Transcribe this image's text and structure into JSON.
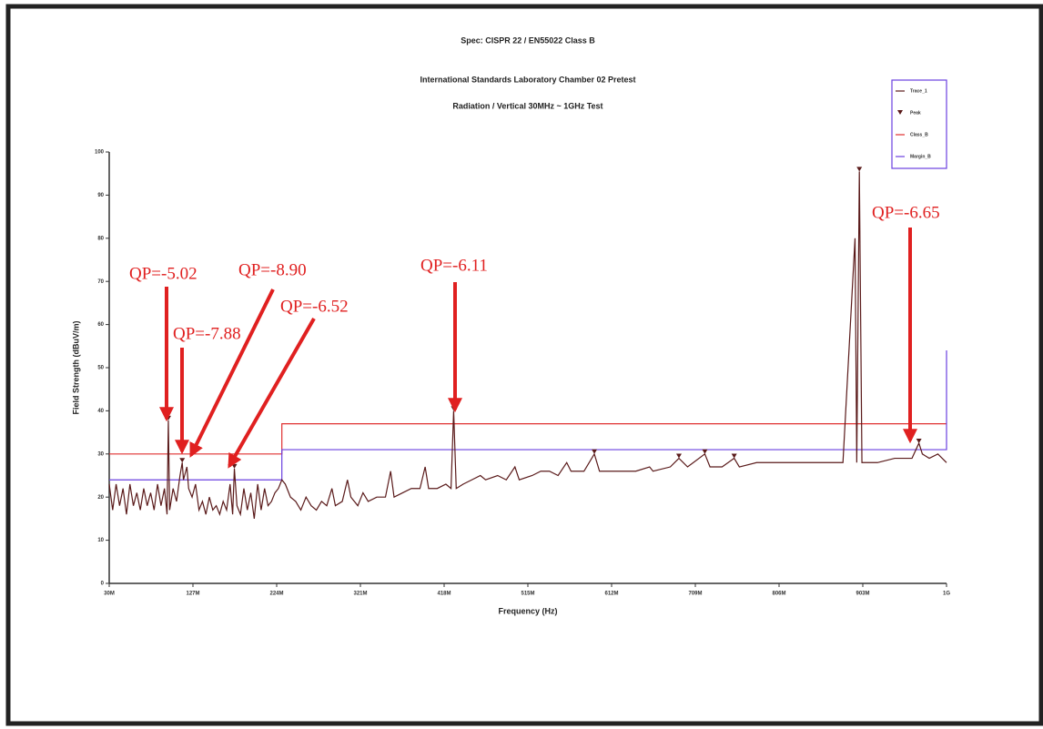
{
  "chart_data": {
    "type": "line",
    "title": "Spec: CISPR 22 / EN55022 Class B",
    "subtitle": "International Standards Laboratory Chamber 02 Pretest",
    "subtitle2": "Radiation / Vertical 30MHz ~ 1GHz Test",
    "xlabel": "Frequency (Hz)",
    "ylabel": "Field Strength (dBuV/m)",
    "xlim": [
      30,
      1000
    ],
    "ylim": [
      0,
      100
    ],
    "xticks": [
      {
        "value": 30,
        "label": "30M"
      },
      {
        "value": 127,
        "label": "127M"
      },
      {
        "value": 224,
        "label": "224M"
      },
      {
        "value": 321,
        "label": "321M"
      },
      {
        "value": 418,
        "label": "418M"
      },
      {
        "value": 515,
        "label": "515M"
      },
      {
        "value": 612,
        "label": "612M"
      },
      {
        "value": 709,
        "label": "709M"
      },
      {
        "value": 806,
        "label": "806M"
      },
      {
        "value": 903,
        "label": "903M"
      },
      {
        "value": 1000,
        "label": "1G"
      }
    ],
    "yticks": [
      0,
      10,
      20,
      30,
      40,
      50,
      60,
      70,
      80,
      90,
      100
    ],
    "legend": "upper right",
    "series": [
      {
        "name": "Trace_1",
        "color": "#5a1a1a",
        "mode": "line",
        "x": [
          30,
          34,
          38,
          42,
          46,
          50,
          54,
          58,
          62,
          66,
          70,
          74,
          78,
          82,
          86,
          90,
          94,
          97,
          98.5,
          100,
          104,
          108,
          112,
          114.6,
          116,
          120,
          122,
          126,
          130,
          134,
          138,
          142,
          146,
          150,
          154,
          158,
          162,
          166,
          170,
          173,
          175,
          178,
          182,
          186,
          190,
          194,
          198,
          202,
          206,
          210,
          214,
          218,
          222,
          226,
          230,
          234,
          240,
          246,
          252,
          258,
          264,
          270,
          276,
          282,
          288,
          292,
          300,
          306,
          310,
          318,
          324,
          330,
          340,
          350,
          356,
          360,
          370,
          380,
          390,
          396,
          400,
          410,
          420,
          426,
          429,
          432,
          440,
          450,
          460,
          466,
          480,
          490,
          500,
          505,
          520,
          530,
          540,
          550,
          560,
          565,
          580,
          592,
          598,
          620,
          640,
          656,
          660,
          680,
          690,
          700,
          720,
          726,
          740,
          754,
          760,
          780,
          800,
          820,
          840,
          860,
          870,
          880,
          894,
          896,
          899,
          902,
          920,
          940,
          950,
          960,
          968,
          972,
          980,
          990,
          1000
        ],
        "values": [
          23,
          17,
          23,
          18,
          22,
          16,
          23,
          18,
          21,
          17,
          22,
          18,
          21,
          17,
          23,
          18,
          22,
          16,
          37.8,
          17,
          22,
          19,
          25,
          28,
          24,
          27,
          22,
          20,
          23,
          17,
          19,
          16,
          20,
          17,
          18,
          16,
          19,
          17,
          23,
          16,
          26.6,
          18,
          16,
          22,
          17,
          21,
          15,
          23,
          17,
          22,
          18,
          19,
          21,
          22,
          24,
          23,
          20,
          19,
          17,
          20,
          18,
          17,
          19,
          18,
          22,
          18,
          19,
          24,
          20,
          18,
          21,
          19,
          20,
          20,
          26,
          20,
          21,
          22,
          22,
          27,
          22,
          22,
          23,
          22,
          40,
          22,
          23,
          24,
          25,
          24,
          25,
          24,
          27,
          24,
          25,
          26,
          26,
          25,
          28,
          26,
          26,
          30,
          26,
          26,
          26,
          27,
          26,
          27,
          29,
          27,
          30,
          27,
          27,
          29,
          27,
          28,
          28,
          28,
          28,
          28,
          28,
          28,
          80,
          28,
          95.5,
          28,
          28,
          29,
          29,
          29,
          32.5,
          30,
          29,
          30,
          28
        ]
      },
      {
        "name": "Peak",
        "color": "#5a1a1a",
        "mode": "markers",
        "x": [
          98.5,
          114.6,
          175,
          429,
          592,
          690,
          720,
          754,
          899,
          968
        ],
        "values": [
          37.8,
          28,
          26.6,
          40,
          30,
          29,
          30,
          29,
          95.5,
          32.5
        ]
      },
      {
        "name": "Class_B",
        "color": "#e03030",
        "mode": "line",
        "x": [
          30,
          230,
          230,
          1000
        ],
        "values": [
          30,
          30,
          37,
          37
        ]
      },
      {
        "name": "Margin_B",
        "color": "#6a40e0",
        "mode": "line",
        "x": [
          30,
          230,
          230,
          1000,
          1000
        ],
        "values": [
          24,
          24,
          31,
          31,
          54
        ]
      }
    ],
    "annotations": [
      "QP=-5.02",
      "QP=-7.88",
      "QP=-8.90",
      "QP=-6.52",
      "QP=-6.11",
      "QP=-6.65"
    ]
  }
}
